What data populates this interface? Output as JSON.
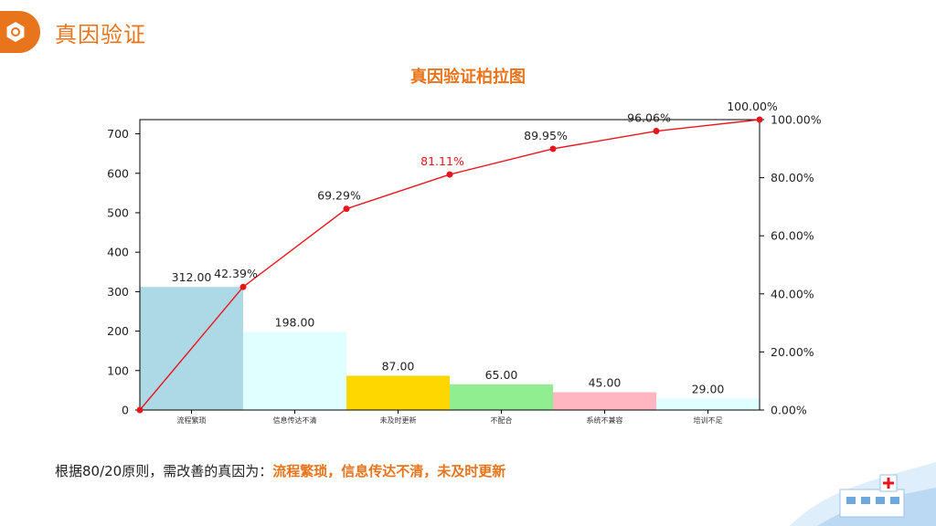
{
  "header": {
    "title": "真因验证"
  },
  "colors": {
    "accent": "#e8741c",
    "line": "#e8161c"
  },
  "chart_data": {
    "type": "bar",
    "title": "真因验证柏拉图",
    "categories": [
      "流程繁琐",
      "信息传达不清",
      "未及时更新",
      "不配合",
      "系统不兼容",
      "培训不足"
    ],
    "values": [
      312,
      198,
      87,
      65,
      45,
      29
    ],
    "value_labels": [
      "312.00",
      "198.00",
      "87.00",
      "65.00",
      "45.00",
      "29.00"
    ],
    "bar_colors": [
      "#add8e6",
      "#e0ffff",
      "#ffd700",
      "#90ee90",
      "#ffb6c1",
      "#e0ffff"
    ],
    "cumulative_percent": [
      0,
      42.39,
      69.29,
      81.11,
      89.95,
      96.06,
      100.0
    ],
    "cumulative_labels": [
      "42.39%",
      "69.29%",
      "81.11%",
      "89.95%",
      "96.06%",
      "100.00%"
    ],
    "ylim_left": [
      0,
      736
    ],
    "yticks_left": [
      "0",
      "100",
      "200",
      "300",
      "400",
      "500",
      "600",
      "700"
    ],
    "ylim_right": [
      0,
      100
    ],
    "yticks_right": [
      "0.00%",
      "20.00%",
      "40.00%",
      "60.00%",
      "80.00%",
      "100.00%"
    ],
    "grid": false
  },
  "conclusion": {
    "prefix": "根据80/20原则，需改善的真因为：",
    "highlight": "流程繁琐，信息传达不清，未及时更新"
  }
}
